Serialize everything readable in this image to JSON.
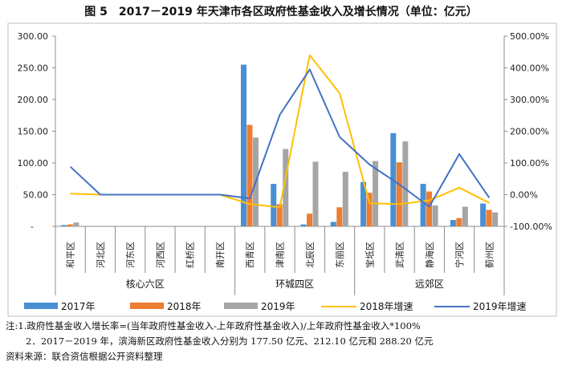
{
  "title": "图 5　2017－2019 年天津市各区政府性基金收入及增长情况（单位：亿元）",
  "notes": {
    "line1": "注:1.政府性基金收入增长率=(当年政府性基金收入-上年政府性基金收入)/上年政府性基金收入*100%",
    "line2": "2．2017－2019 年，滨海新区政府性基金收入分别为 177.50 亿元、212.10 亿元和 288.20 亿元",
    "line3": "资料来源：联合资信根据公开资料整理"
  },
  "colors": {
    "s2017": "#4a8fd4",
    "s2018": "#ed7d31",
    "s2019": "#a5a5a5",
    "g2018": "#ffc000",
    "g2019": "#4472c4",
    "axis": "#8c8c8c"
  },
  "chart_data": {
    "type": "bar",
    "categories": [
      "和平区",
      "河北区",
      "河东区",
      "河西区",
      "红桥区",
      "南开区",
      "西青区",
      "津南区",
      "北辰区",
      "东丽区",
      "宝坻区",
      "武清区",
      "静海区",
      "宁河区",
      "蓟州区"
    ],
    "groups": [
      {
        "label": "核心六区",
        "count": 6
      },
      {
        "label": "环城四区",
        "count": 4
      },
      {
        "label": "远郊区",
        "count": 5
      }
    ],
    "y_left": {
      "min": 0,
      "max": 300,
      "ticks": [
        "-",
        "50.00",
        "100.00",
        "150.00",
        "200.00",
        "250.00",
        "300.00"
      ]
    },
    "y_right": {
      "min": -100,
      "max": 500,
      "ticks": [
        "-100.00%",
        "0.00%",
        "100.00%",
        "200.00%",
        "300.00%",
        "400.00%",
        "500.00%"
      ]
    },
    "series": [
      {
        "name": "2017年",
        "kind": "bar",
        "values": [
          2,
          0,
          0,
          0,
          0,
          0,
          255,
          67,
          3,
          7,
          70,
          147,
          67,
          10,
          36
        ]
      },
      {
        "name": "2018年",
        "kind": "bar",
        "values": [
          3,
          0,
          0,
          0,
          0,
          0,
          160,
          35,
          20,
          30,
          53,
          101,
          55,
          13,
          26
        ]
      },
      {
        "name": "2019年",
        "kind": "bar",
        "values": [
          6,
          0,
          0,
          0,
          0,
          0,
          140,
          122,
          102,
          86,
          103,
          134,
          33,
          31,
          22
        ]
      },
      {
        "name": "2018年增速",
        "kind": "line",
        "axis": "right",
        "values": [
          3,
          0,
          0,
          0,
          0,
          0,
          -30,
          -40,
          440,
          320,
          -27,
          -30,
          -18,
          22,
          -26
        ]
      },
      {
        "name": "2019年增速",
        "kind": "line",
        "axis": "right",
        "values": [
          88,
          0,
          0,
          0,
          0,
          0,
          -12,
          252,
          395,
          182,
          95,
          32,
          -38,
          128,
          -10
        ]
      }
    ]
  }
}
